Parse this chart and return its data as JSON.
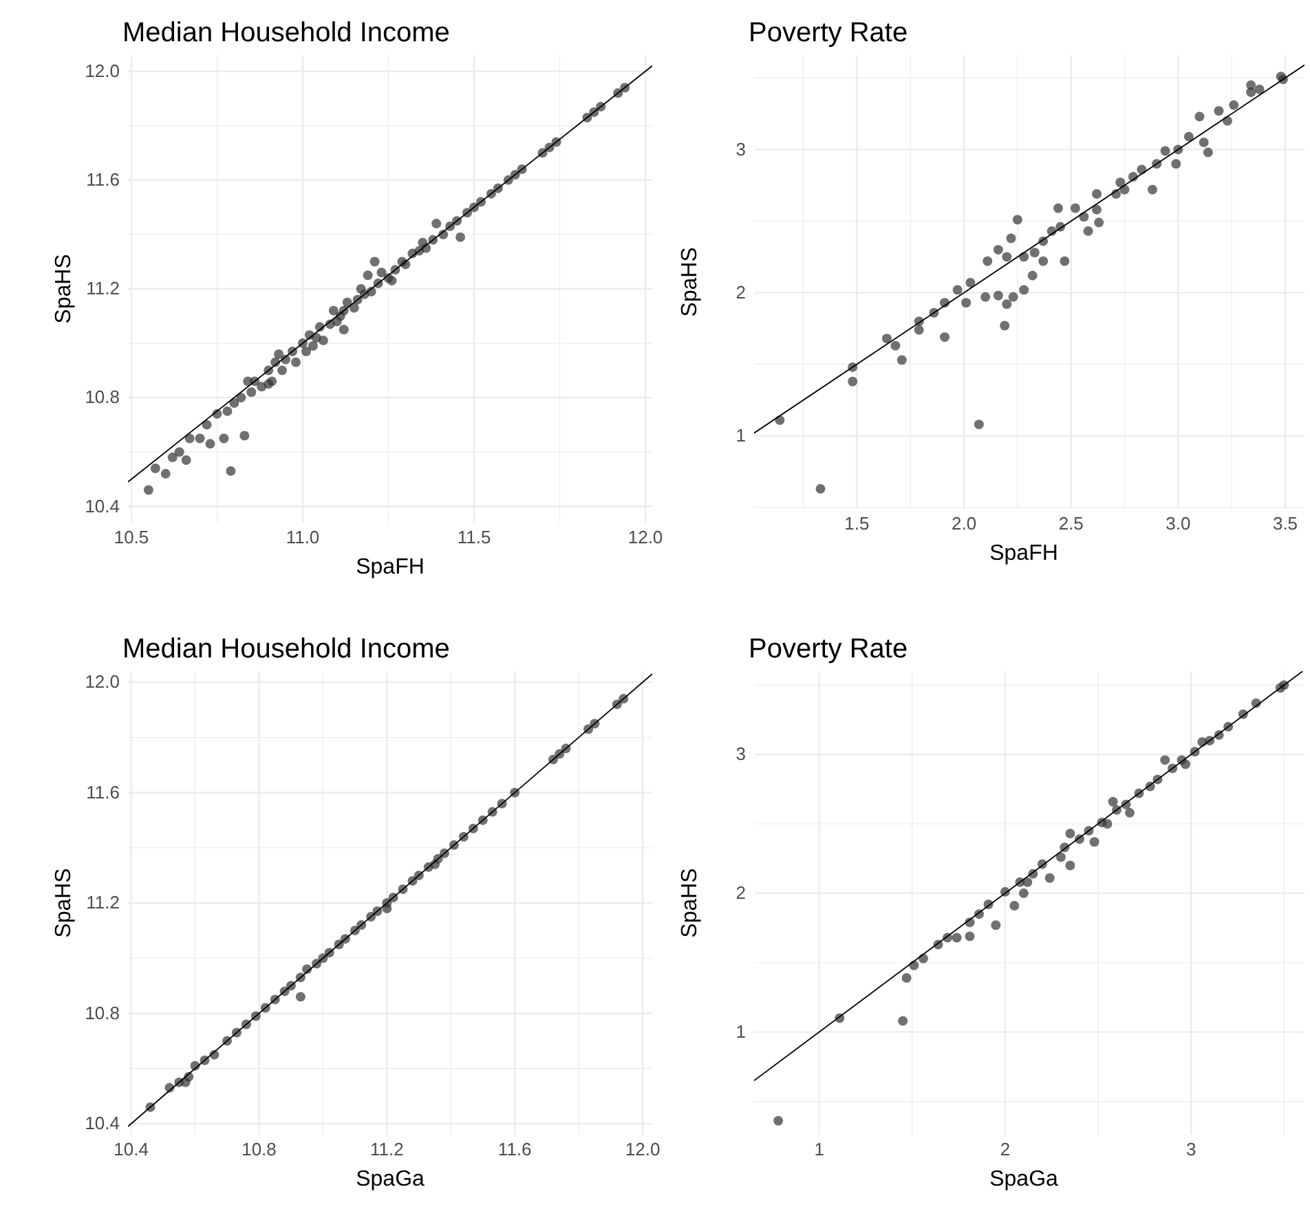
{
  "chart_data": [
    {
      "type": "scatter",
      "title": "Median Household Income",
      "xlabel": "SpaFH",
      "ylabel": "SpaHS",
      "grid": true,
      "xlim": [
        10.49,
        12.02
      ],
      "ylim": [
        10.34,
        12.06
      ],
      "xticks": [
        10.5,
        {
          "value": 10.75,
          "label": null
        },
        {
          "value": 11.0,
          "label": "11.0"
        },
        {
          "value": 11.25,
          "label": null
        },
        11.5,
        {
          "value": 11.75,
          "label": null
        },
        {
          "value": 12.0,
          "label": "12.0"
        }
      ],
      "yticks": [
        10.4,
        {
          "value": 10.6,
          "label": null
        },
        10.8,
        {
          "value": 11.0,
          "label": null
        },
        11.2,
        {
          "value": 11.4,
          "label": null
        },
        11.6,
        {
          "value": 11.8,
          "label": null
        },
        {
          "value": 12.0,
          "label": "12.0"
        }
      ],
      "series": [
        {
          "color": "#333333",
          "x": [
            10.55,
            10.57,
            10.6,
            10.62,
            10.64,
            10.66,
            10.67,
            10.7,
            10.72,
            10.73,
            10.75,
            10.77,
            10.78,
            10.79,
            10.8,
            10.82,
            10.83,
            10.85,
            10.86,
            10.88,
            10.9,
            10.91,
            10.92,
            10.94,
            10.95,
            10.97,
            10.98,
            11.0,
            11.01,
            11.02,
            11.04,
            11.05,
            11.06,
            11.08,
            11.09,
            11.1,
            11.12,
            11.13,
            11.15,
            11.16,
            11.18,
            11.19,
            11.2,
            11.22,
            11.23,
            11.25,
            11.27,
            11.29,
            11.3,
            11.32,
            11.34,
            11.36,
            11.38,
            11.39,
            11.41,
            11.43,
            11.45,
            11.46,
            11.48,
            11.5,
            11.52,
            11.55,
            11.57,
            11.6,
            11.62,
            11.64,
            11.7,
            11.72,
            11.74,
            11.83,
            11.85,
            11.87,
            11.92,
            11.94,
            10.84,
            10.93,
            11.03,
            11.11,
            11.17,
            11.26,
            11.35,
            11.12,
            10.9,
            11.21
          ],
          "values": [
            10.46,
            10.54,
            10.52,
            10.58,
            10.6,
            10.57,
            10.65,
            10.65,
            10.7,
            10.63,
            10.74,
            10.65,
            10.75,
            10.53,
            10.78,
            10.8,
            10.66,
            10.82,
            10.86,
            10.84,
            10.9,
            10.86,
            10.93,
            10.9,
            10.94,
            10.97,
            10.93,
            11.0,
            10.97,
            11.03,
            11.02,
            11.06,
            11.01,
            11.07,
            11.12,
            11.08,
            11.12,
            11.15,
            11.13,
            11.16,
            11.18,
            11.25,
            11.19,
            11.22,
            11.26,
            11.24,
            11.27,
            11.3,
            11.29,
            11.33,
            11.34,
            11.35,
            11.38,
            11.44,
            11.4,
            11.43,
            11.45,
            11.39,
            11.48,
            11.5,
            11.52,
            11.55,
            11.57,
            11.6,
            11.62,
            11.64,
            11.7,
            11.72,
            11.74,
            11.83,
            11.85,
            11.87,
            11.92,
            11.94,
            10.86,
            10.96,
            10.99,
            11.1,
            11.2,
            11.23,
            11.37,
            11.05,
            10.85,
            11.3
          ]
        },
        {
          "type": "line",
          "color": "#000000",
          "x": [
            10.49,
            12.02
          ],
          "values": [
            10.49,
            12.02
          ]
        }
      ]
    },
    {
      "type": "scatter",
      "title": "Poverty Rate",
      "xlabel": "SpaFH",
      "ylabel": "SpaHS",
      "grid": true,
      "xlim": [
        1.02,
        3.59
      ],
      "ylim": [
        0.49,
        3.66
      ],
      "xticks": [
        {
          "value": 1.25,
          "label": null
        },
        1.5,
        {
          "value": 1.75,
          "label": null
        },
        {
          "value": 2.0,
          "label": "2.0"
        },
        {
          "value": 2.25,
          "label": null
        },
        2.5,
        {
          "value": 2.75,
          "label": null
        },
        {
          "value": 3.0,
          "label": "3.0"
        },
        {
          "value": 3.25,
          "label": null
        },
        3.5
      ],
      "yticks": [
        {
          "value": 0.5,
          "label": null
        },
        1,
        {
          "value": 1.5,
          "label": null
        },
        2,
        {
          "value": 2.5,
          "label": null
        },
        3,
        {
          "value": 3.5,
          "label": null
        }
      ],
      "series": [
        {
          "color": "#333333",
          "x": [
            1.14,
            1.48,
            1.48,
            1.64,
            1.68,
            1.71,
            1.79,
            1.79,
            1.86,
            1.91,
            1.91,
            1.97,
            2.01,
            2.07,
            2.1,
            2.16,
            2.19,
            2.2,
            2.23,
            2.28,
            2.25,
            2.11,
            2.16,
            2.22,
            2.32,
            2.37,
            2.44,
            2.47,
            2.58,
            2.63,
            2.33,
            2.41,
            2.52,
            2.62,
            2.73,
            2.83,
            2.88,
            2.94,
            2.99,
            3.05,
            3.12,
            3.14,
            3.1,
            3.19,
            3.23,
            3.26,
            3.34,
            3.34,
            3.38,
            3.48,
            3.49,
            2.03,
            2.2,
            2.37,
            2.56,
            2.71,
            2.79,
            2.9,
            3.0,
            2.62,
            2.75,
            2.28,
            2.45,
            1.33
          ],
          "values": [
            1.11,
            1.48,
            1.38,
            1.68,
            1.63,
            1.53,
            1.8,
            1.74,
            1.86,
            1.69,
            1.93,
            2.02,
            1.93,
            1.08,
            1.97,
            1.98,
            1.77,
            1.92,
            1.97,
            2.02,
            2.51,
            2.22,
            2.3,
            2.38,
            2.12,
            2.22,
            2.59,
            2.22,
            2.43,
            2.49,
            2.28,
            2.43,
            2.59,
            2.69,
            2.77,
            2.86,
            2.72,
            2.99,
            2.9,
            3.09,
            3.05,
            2.98,
            3.23,
            3.27,
            3.2,
            3.31,
            3.45,
            3.4,
            3.42,
            3.51,
            3.49,
            2.07,
            2.25,
            2.36,
            2.53,
            2.69,
            2.81,
            2.9,
            3.0,
            2.58,
            2.72,
            2.25,
            2.46,
            0.63
          ]
        },
        {
          "type": "line",
          "color": "#000000",
          "x": [
            1.02,
            3.59
          ],
          "values": [
            1.02,
            3.59
          ]
        }
      ]
    },
    {
      "type": "scatter",
      "title": "Median Household Income",
      "xlabel": "SpaGa",
      "ylabel": "SpaHS",
      "grid": true,
      "xlim": [
        10.39,
        12.03
      ],
      "ylim": [
        10.36,
        12.04
      ],
      "xticks": [
        {
          "value": 10.4,
          "label": "10.4"
        },
        {
          "value": 10.6,
          "label": null
        },
        10.8,
        {
          "value": 11.0,
          "label": null
        },
        11.2,
        {
          "value": 11.4,
          "label": null
        },
        11.6,
        {
          "value": 11.8,
          "label": null
        },
        {
          "value": 12.0,
          "label": "12.0"
        }
      ],
      "yticks": [
        {
          "value": 10.4,
          "label": "10.4"
        },
        {
          "value": 10.6,
          "label": null
        },
        10.8,
        {
          "value": 11.0,
          "label": null
        },
        11.2,
        {
          "value": 11.4,
          "label": null
        },
        11.6,
        {
          "value": 11.8,
          "label": null
        },
        {
          "value": 12.0,
          "label": "12.0"
        }
      ],
      "series": [
        {
          "color": "#333333",
          "x": [
            10.46,
            10.52,
            10.55,
            10.58,
            10.6,
            10.63,
            10.66,
            10.7,
            10.73,
            10.76,
            10.79,
            10.82,
            10.85,
            10.88,
            10.9,
            10.93,
            10.95,
            10.98,
            11.0,
            11.02,
            11.05,
            11.07,
            11.1,
            11.12,
            11.15,
            11.17,
            11.2,
            11.22,
            11.25,
            11.28,
            11.3,
            11.33,
            11.36,
            11.38,
            11.41,
            11.44,
            11.47,
            11.5,
            11.53,
            11.56,
            11.6,
            11.72,
            11.74,
            11.76,
            11.83,
            11.85,
            11.92,
            11.94,
            10.93,
            10.57,
            11.2,
            11.35
          ],
          "values": [
            10.46,
            10.53,
            10.55,
            10.57,
            10.61,
            10.63,
            10.65,
            10.7,
            10.73,
            10.76,
            10.79,
            10.82,
            10.85,
            10.88,
            10.9,
            10.93,
            10.96,
            10.98,
            11.0,
            11.02,
            11.05,
            11.07,
            11.1,
            11.12,
            11.15,
            11.17,
            11.2,
            11.22,
            11.25,
            11.28,
            11.3,
            11.33,
            11.36,
            11.38,
            11.41,
            11.44,
            11.47,
            11.5,
            11.53,
            11.56,
            11.6,
            11.72,
            11.74,
            11.76,
            11.83,
            11.85,
            11.92,
            11.94,
            10.86,
            10.55,
            11.18,
            11.34
          ]
        },
        {
          "type": "line",
          "color": "#000000",
          "x": [
            10.39,
            12.03
          ],
          "values": [
            10.39,
            12.03
          ]
        }
      ]
    },
    {
      "type": "scatter",
      "title": "Poverty Rate",
      "xlabel": "SpaGa",
      "ylabel": "SpaHS",
      "grid": true,
      "xlim": [
        0.65,
        3.61
      ],
      "ylim": [
        0.26,
        3.6
      ],
      "xticks": [
        1,
        {
          "value": 1.5,
          "label": null
        },
        2,
        {
          "value": 2.5,
          "label": null
        },
        3,
        {
          "value": 3.5,
          "label": null
        }
      ],
      "yticks": [
        {
          "value": 0.5,
          "label": null
        },
        1,
        {
          "value": 1.5,
          "label": null
        },
        2,
        {
          "value": 2.5,
          "label": null
        },
        3,
        {
          "value": 3.5,
          "label": null
        }
      ],
      "series": [
        {
          "color": "#333333",
          "x": [
            0.78,
            1.11,
            1.45,
            1.47,
            1.51,
            1.56,
            1.64,
            1.69,
            1.74,
            1.81,
            1.81,
            1.86,
            1.95,
            1.91,
            2.05,
            2.1,
            2.24,
            2.35,
            2.35,
            2.48,
            2.58,
            2.67,
            2.86,
            2.97,
            3.06,
            3.28,
            3.35,
            3.5,
            3.48,
            2.0,
            2.08,
            2.15,
            2.2,
            2.28,
            2.32,
            2.4,
            2.45,
            2.52,
            2.6,
            2.65,
            2.72,
            2.78,
            2.82,
            2.9,
            2.95,
            3.02,
            3.1,
            3.15,
            3.2,
            2.3,
            2.55,
            2.12
          ],
          "values": [
            0.36,
            1.1,
            1.08,
            1.39,
            1.48,
            1.53,
            1.63,
            1.68,
            1.68,
            1.69,
            1.79,
            1.85,
            1.77,
            1.92,
            1.91,
            2.0,
            2.11,
            2.2,
            2.43,
            2.37,
            2.66,
            2.58,
            2.96,
            2.93,
            3.09,
            3.29,
            3.37,
            3.5,
            3.48,
            2.01,
            2.08,
            2.14,
            2.21,
            null,
            2.33,
            2.39,
            2.45,
            2.51,
            2.6,
            2.64,
            2.72,
            2.77,
            2.82,
            2.9,
            2.96,
            3.02,
            3.1,
            3.14,
            3.2,
            2.26,
            2.5,
            2.08
          ]
        },
        {
          "type": "line",
          "color": "#000000",
          "x": [
            0.65,
            3.6
          ],
          "values": [
            0.65,
            3.6
          ]
        }
      ]
    }
  ]
}
